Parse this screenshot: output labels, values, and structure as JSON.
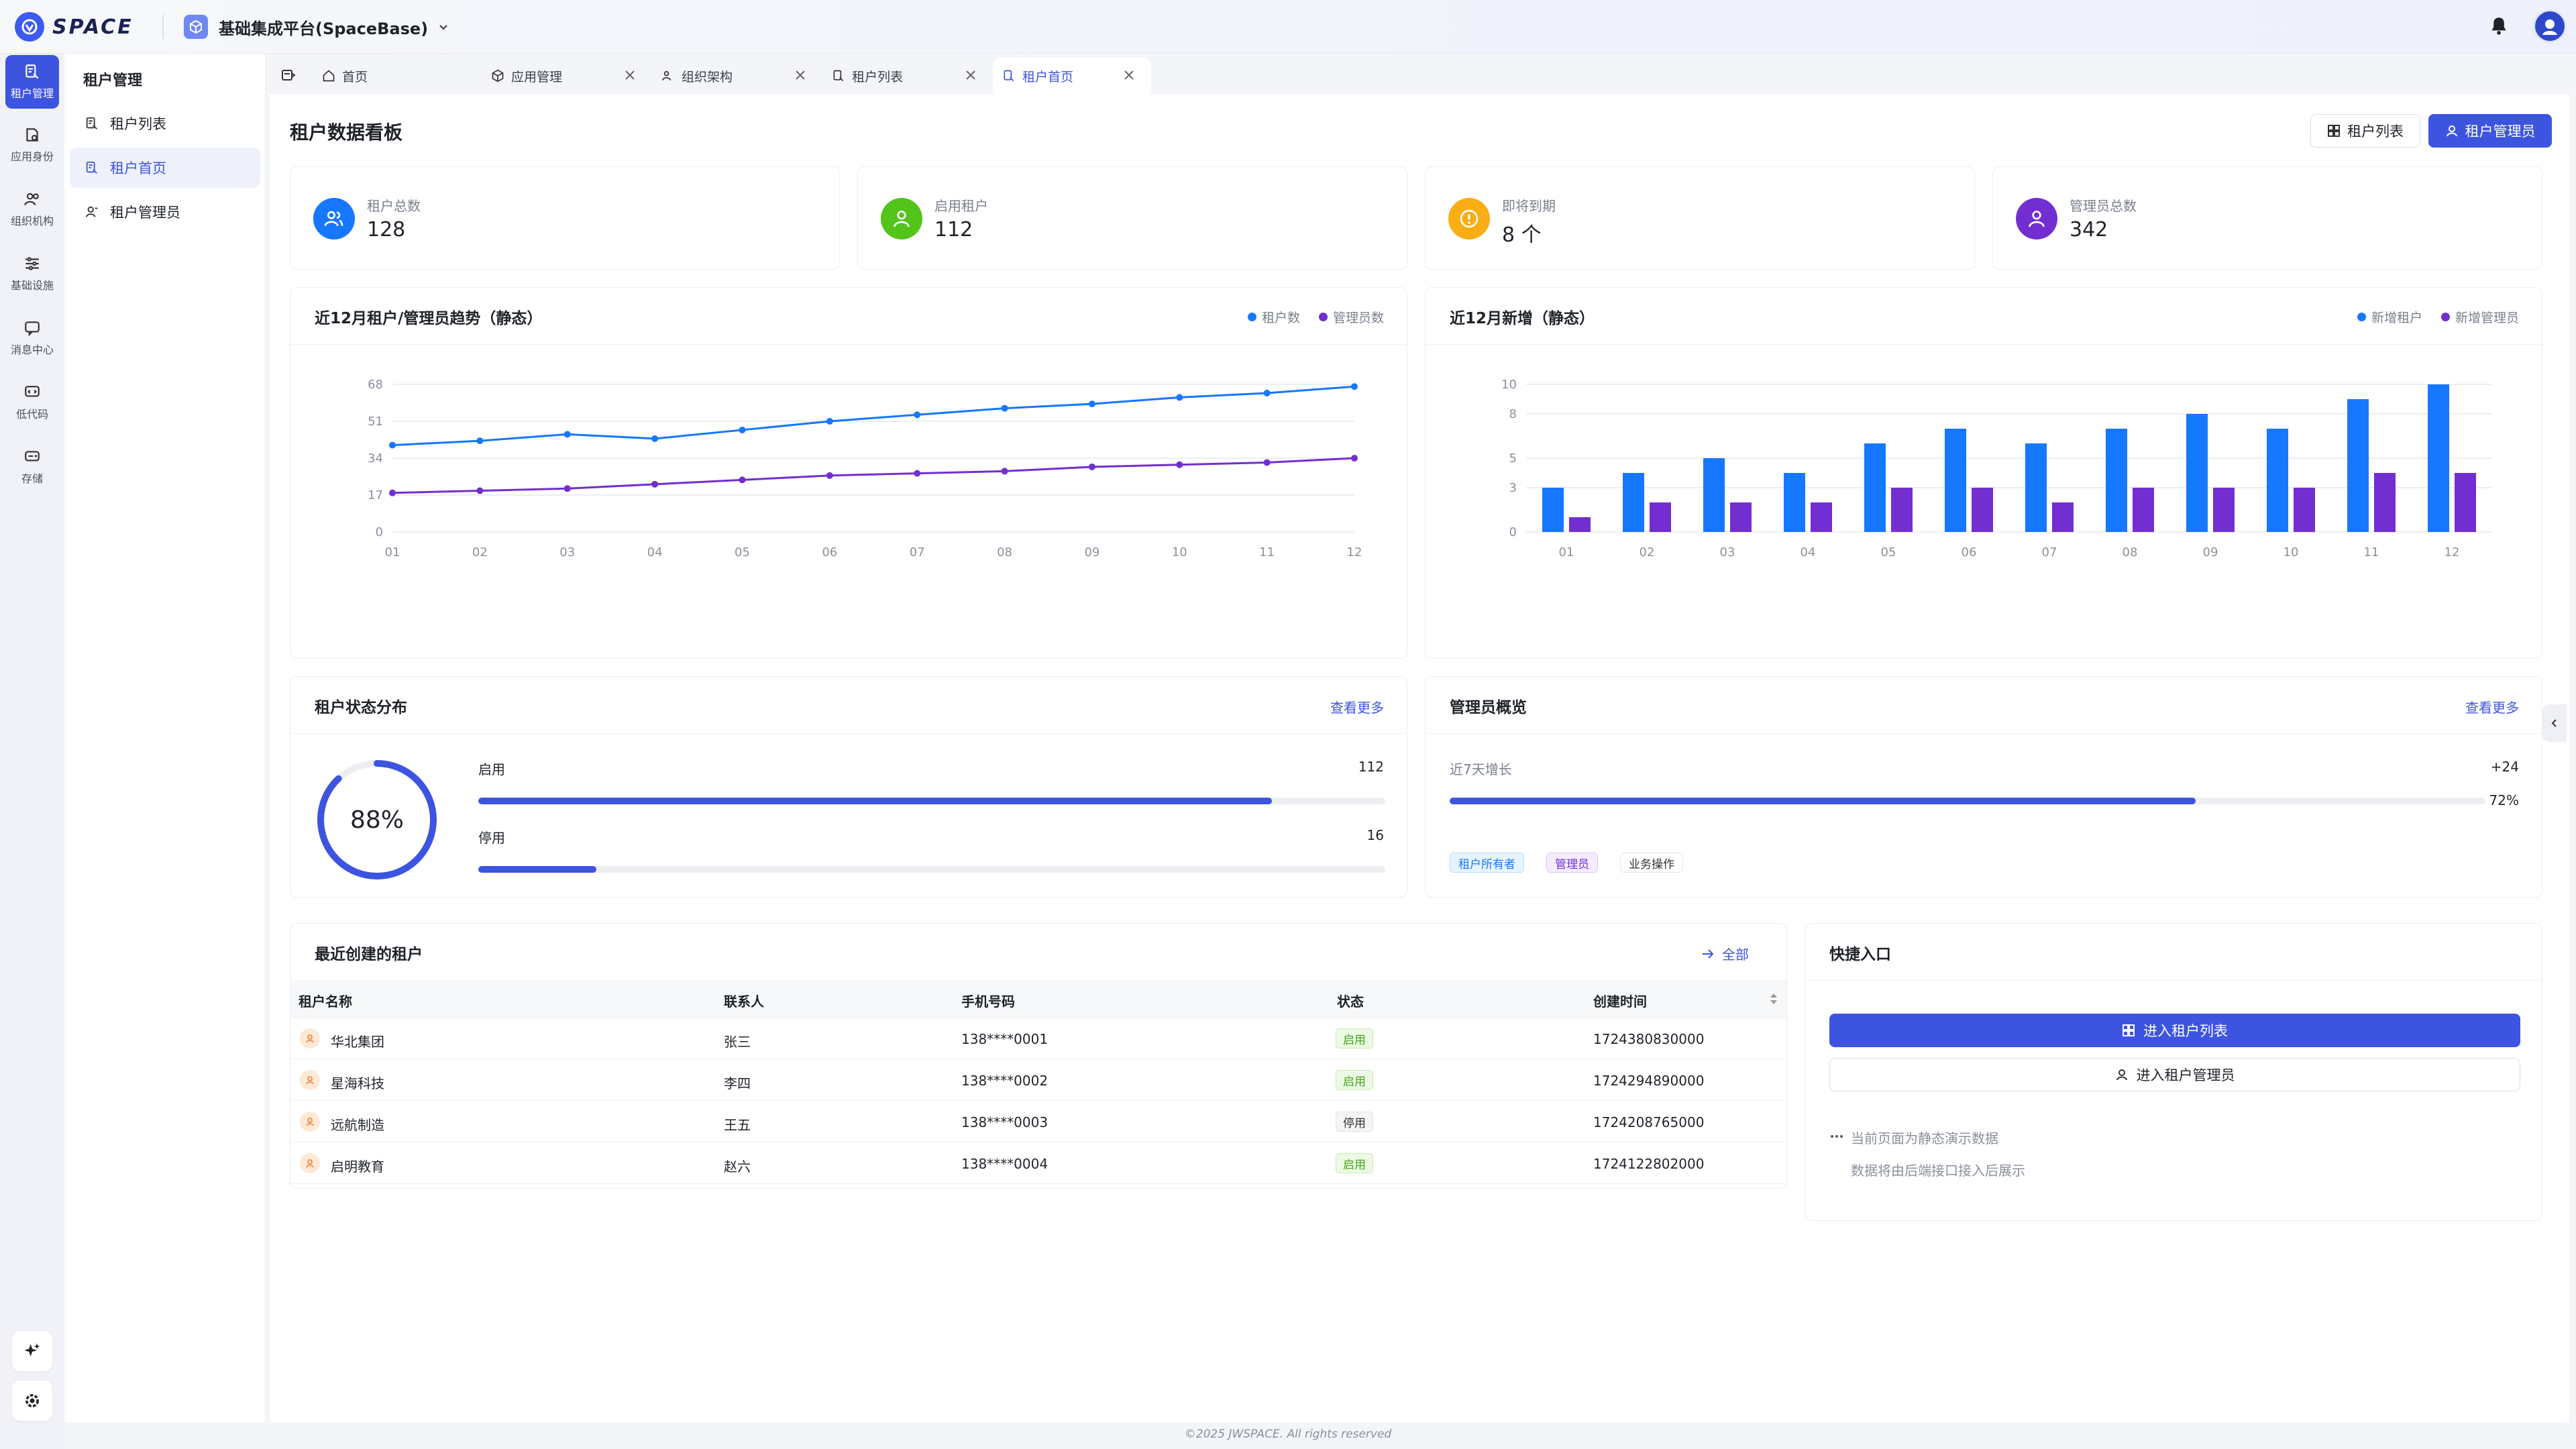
{
  "app": {
    "logo_text": "SPACE",
    "platform_name": "基础集成平台(SpaceBase)"
  },
  "colors": {
    "primary": "#3d54e0",
    "blue": "#1677ff",
    "purple": "#722ed1",
    "green": "#52c41a",
    "orange": "#faad14"
  },
  "rail": {
    "items": [
      {
        "label": "租户管理",
        "icon": "tenant-icon"
      },
      {
        "label": "应用身份",
        "icon": "app-identity-icon"
      },
      {
        "label": "组织机构",
        "icon": "org-icon"
      },
      {
        "label": "基础设施",
        "icon": "sliders-icon"
      },
      {
        "label": "消息中心",
        "icon": "message-icon"
      },
      {
        "label": "低代码",
        "icon": "code-icon"
      },
      {
        "label": "存储",
        "icon": "storage-icon"
      }
    ]
  },
  "sidebar": {
    "title": "租户管理",
    "items": [
      {
        "label": "租户列表"
      },
      {
        "label": "租户首页"
      },
      {
        "label": "租户管理员"
      }
    ]
  },
  "tabs": [
    {
      "label": "首页"
    },
    {
      "label": "应用管理"
    },
    {
      "label": "组织架构"
    },
    {
      "label": "租户列表"
    },
    {
      "label": "租户首页"
    }
  ],
  "page": {
    "title": "租户数据看板",
    "btn_list": "租户列表",
    "btn_admin": "租户管理员"
  },
  "stats": [
    {
      "label": "租户总数",
      "value": "128"
    },
    {
      "label": "启用租户",
      "value": "112"
    },
    {
      "label": "即将到期",
      "value": "8 个"
    },
    {
      "label": "管理员总数",
      "value": "342"
    }
  ],
  "trend": {
    "title": "近12月租户/管理员趋势（静态）",
    "legend": [
      "租户数",
      "管理员数"
    ]
  },
  "newly": {
    "title": "近12月新增（静态）",
    "legend": [
      "新增租户",
      "新增管理员"
    ]
  },
  "chart_data": [
    {
      "type": "line",
      "title": "近12月租户/管理员趋势（静态）",
      "x": [
        "01",
        "02",
        "03",
        "04",
        "05",
        "06",
        "07",
        "08",
        "09",
        "10",
        "11",
        "12"
      ],
      "series": [
        {
          "name": "租户数",
          "values": [
            40,
            42,
            45,
            43,
            47,
            51,
            54,
            57,
            59,
            62,
            64,
            67
          ]
        },
        {
          "name": "管理员数",
          "values": [
            18,
            19,
            20,
            22,
            24,
            26,
            27,
            28,
            30,
            31,
            32,
            34
          ]
        }
      ],
      "yticks": [
        "0",
        "17",
        "34",
        "51",
        "68"
      ],
      "ylim": [
        0,
        68
      ]
    },
    {
      "type": "bar",
      "title": "近12月新增（静态）",
      "categories": [
        "01",
        "02",
        "03",
        "04",
        "05",
        "06",
        "07",
        "08",
        "09",
        "10",
        "11",
        "12"
      ],
      "series": [
        {
          "name": "新增租户",
          "values": [
            3,
            4,
            5,
            4,
            6,
            7,
            6,
            7,
            8,
            7,
            9,
            10
          ]
        },
        {
          "name": "新增管理员",
          "values": [
            1,
            2,
            2,
            2,
            3,
            3,
            2,
            3,
            3,
            3,
            4,
            4
          ]
        }
      ],
      "yticks": [
        "0",
        "3",
        "5",
        "8",
        "10"
      ],
      "ylim": [
        0,
        10
      ]
    }
  ],
  "status_dist": {
    "title": "租户状态分布",
    "more": "查看更多",
    "percent_text": "88%",
    "percent": 88,
    "items": [
      {
        "label": "启用",
        "value": "112",
        "ratio": 0.875
      },
      {
        "label": "停用",
        "value": "16",
        "ratio": 0.13
      }
    ]
  },
  "admin_overview": {
    "title": "管理员概览",
    "more": "查看更多",
    "growth_label": "近7天增长",
    "growth_value": "+24",
    "ratio_text": "72%",
    "ratio": 0.72,
    "tags": [
      "租户所有者",
      "管理员",
      "业务操作"
    ]
  },
  "recent": {
    "title": "最近创建的租户",
    "all": "全部",
    "columns": [
      "租户名称",
      "联系人",
      "手机号码",
      "状态",
      "创建时间"
    ],
    "rows": [
      {
        "name": "华北集团",
        "contact": "张三",
        "phone": "138****0001",
        "status": "启用",
        "created": "1724380830000"
      },
      {
        "name": "星海科技",
        "contact": "李四",
        "phone": "138****0002",
        "status": "启用",
        "created": "1724294890000"
      },
      {
        "name": "远航制造",
        "contact": "王五",
        "phone": "138****0003",
        "status": "停用",
        "created": "1724208765000"
      },
      {
        "name": "启明教育",
        "contact": "赵六",
        "phone": "138****0004",
        "status": "启用",
        "created": "1724122802000"
      }
    ]
  },
  "quick": {
    "title": "快捷入口",
    "btn1": "进入租户列表",
    "btn2": "进入租户管理员",
    "note1": "当前页面为静态演示数据",
    "note2": "数据将由后端接口接入后展示"
  },
  "footer": "©2025 JWSPACE. All rights reserved"
}
